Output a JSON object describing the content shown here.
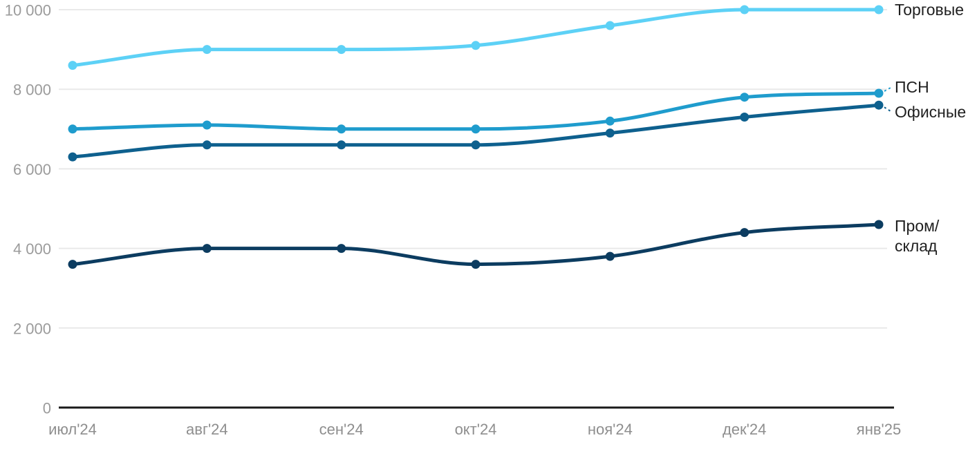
{
  "chart_data": {
    "type": "line",
    "title": "",
    "xlabel": "",
    "ylabel": "",
    "grid": true,
    "legend_position": "right-inline",
    "ylim": [
      0,
      10000
    ],
    "x_labels": [
      "июл'24",
      "авг'24",
      "сен'24",
      "окт'24",
      "ноя'24",
      "дек'24",
      "янв'25"
    ],
    "y_ticks": [
      {
        "value": 0,
        "label": "0"
      },
      {
        "value": 2000,
        "label": "2 000"
      },
      {
        "value": 4000,
        "label": "4 000"
      },
      {
        "value": 6000,
        "label": "6 000"
      },
      {
        "value": 8000,
        "label": "8 000"
      },
      {
        "value": 10000,
        "label": "10 000"
      }
    ],
    "series": [
      {
        "id": "retail",
        "name": "Торговые",
        "label_lines": [
          "Торговые"
        ],
        "color": "#5dd1f6",
        "connector": "none",
        "values": [
          8600,
          9000,
          9000,
          9100,
          9600,
          10000,
          10000
        ]
      },
      {
        "id": "psn",
        "name": "ПСН",
        "label_lines": [
          "ПСН"
        ],
        "color": "#1f9ccd",
        "connector": "dashed",
        "values": [
          7000,
          7100,
          7000,
          7000,
          7200,
          7800,
          7900
        ]
      },
      {
        "id": "office",
        "name": "Офисные",
        "label_lines": [
          "Офисные"
        ],
        "color": "#0e608e",
        "connector": "dashed",
        "values": [
          6300,
          6600,
          6600,
          6600,
          6900,
          7300,
          7600
        ]
      },
      {
        "id": "prom-sklad",
        "name": "Пром/склад",
        "label_lines": [
          "Пром/",
          "склад"
        ],
        "color": "#0c3c60",
        "connector": "none",
        "values": [
          3600,
          4000,
          4000,
          3600,
          3800,
          4400,
          4600
        ]
      }
    ]
  },
  "colors": {
    "background": "#ffffff",
    "grid": "#e9e9e9",
    "axis": "#1a1a1a",
    "y_tick_label": "#9b9b9b",
    "x_tick_label": "#8e8e8e",
    "series_label": "#1f1f1f"
  }
}
